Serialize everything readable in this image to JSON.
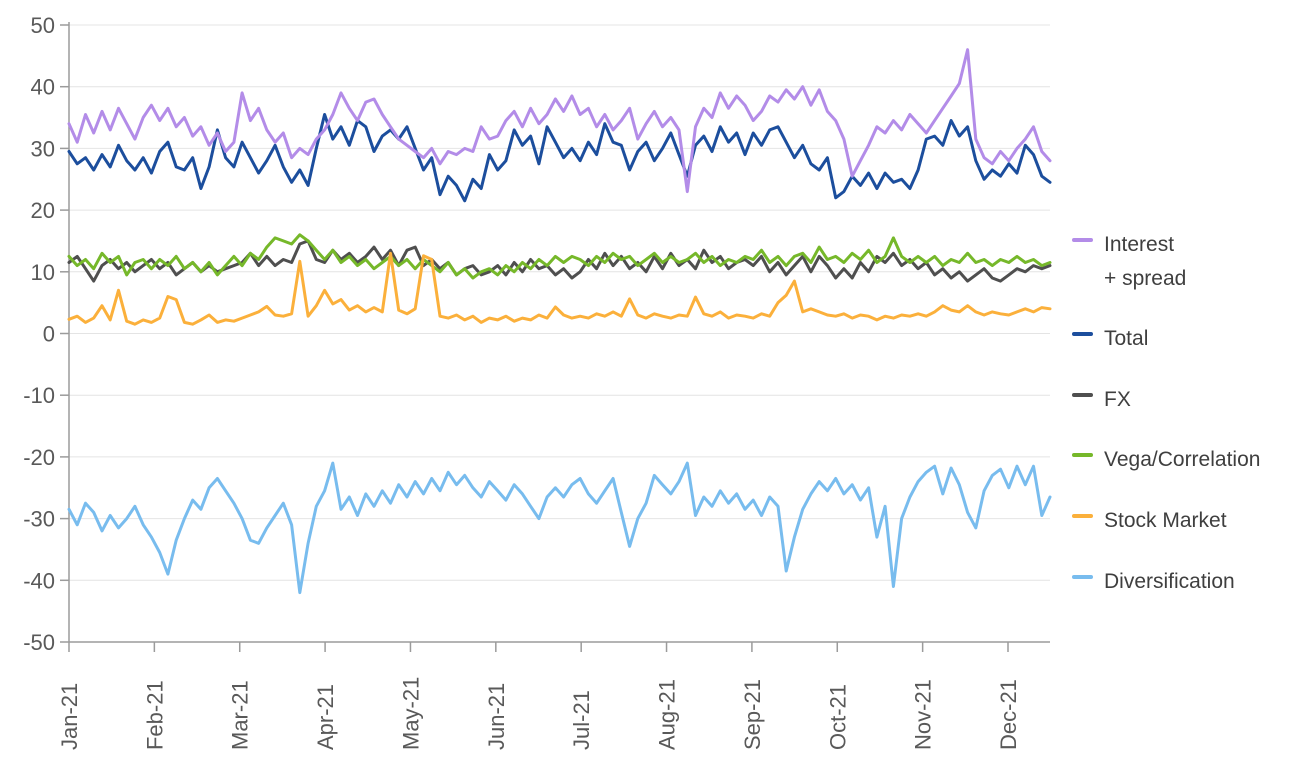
{
  "chart_data": {
    "type": "line",
    "title": "",
    "xlabel": "",
    "ylabel": "",
    "ylim": [
      -50,
      50
    ],
    "ytick_step": 10,
    "y_tick_labels": [
      "50",
      "40",
      "30",
      "20",
      "10",
      "0",
      "-10",
      "-20",
      "-30",
      "-40",
      "-50"
    ],
    "x_labels": [
      "Jan-21",
      "Feb-21",
      "Mar-21",
      "Apr-21",
      "May-21",
      "Jun-21",
      "Jul-21",
      "Aug-21",
      "Sep-21",
      "Oct-21",
      "Nov-21",
      "Dec-21"
    ],
    "grid": true,
    "legend_position": "right",
    "colors": {
      "grid": "#e4e4e4",
      "axis": "#9b9b9b",
      "tick_text": "#595959",
      "legend_text": "#3f3f3f",
      "background": "#ffffff"
    },
    "series": [
      {
        "name": "Interest + spread",
        "label": "Interest\n+ spread",
        "color": "#b38ce8",
        "values": [
          34,
          31,
          35.5,
          32.5,
          36,
          33,
          36.5,
          34,
          31.5,
          35,
          37,
          34.5,
          36.5,
          33.5,
          35,
          32,
          33.5,
          30.5,
          32.5,
          29.5,
          31,
          39,
          34.5,
          36.5,
          33,
          31,
          32.5,
          28.5,
          30,
          29,
          31.5,
          33,
          35.5,
          39,
          36.5,
          34.5,
          37.5,
          38,
          35.5,
          33.5,
          31.5,
          30.5,
          29.5,
          28.5,
          30,
          27.5,
          29.5,
          29,
          30,
          29.5,
          33.5,
          31.5,
          32,
          34.5,
          36,
          33.5,
          36.5,
          34,
          35.5,
          38,
          36,
          38.5,
          35.5,
          36.5,
          33.5,
          35.5,
          33,
          34.5,
          36.5,
          31.5,
          34,
          36,
          33.5,
          35,
          33,
          23,
          33.5,
          36.5,
          35,
          39,
          36.5,
          38.5,
          37,
          34.5,
          36,
          38.5,
          37.5,
          39.5,
          38,
          40,
          37,
          39.5,
          36,
          34.5,
          31.5,
          25.5,
          28,
          30.5,
          33.5,
          32.5,
          34.5,
          33,
          35.5,
          34,
          32.5,
          34.5,
          36.5,
          38.5,
          40.5,
          46,
          31.5,
          28.5,
          27.5,
          29.5,
          28,
          30,
          31.5,
          33.5,
          29.5,
          28
        ]
      },
      {
        "name": "Total",
        "label": "Total",
        "color": "#1c4e9d",
        "values": [
          29.5,
          27.5,
          28.5,
          26.5,
          29,
          27,
          30.5,
          28,
          26.5,
          28.5,
          26,
          29.5,
          31,
          27,
          26.5,
          28.5,
          23.5,
          27,
          33,
          28.5,
          27,
          31,
          28.5,
          26,
          28,
          30.5,
          27,
          24.5,
          26.5,
          24,
          30,
          35.5,
          31.5,
          33.5,
          30.5,
          34.5,
          33.5,
          29.5,
          32,
          33,
          31.5,
          33.5,
          30,
          26.5,
          28.5,
          22.5,
          25.5,
          24,
          21.5,
          25,
          23.5,
          29,
          26.5,
          28,
          33,
          30.5,
          32,
          27.5,
          33.5,
          31,
          28.5,
          30,
          28,
          31,
          29,
          34,
          31,
          30.5,
          26.5,
          29.5,
          31,
          28,
          30,
          32.5,
          29,
          25.5,
          30.5,
          32,
          29.5,
          33.5,
          31,
          32.5,
          29,
          32.5,
          30.5,
          33,
          33.5,
          31,
          28.5,
          30.5,
          27.5,
          26.5,
          28.5,
          22,
          23,
          25.5,
          24,
          26,
          23.5,
          26,
          24.5,
          25,
          23.5,
          26.5,
          31.5,
          32,
          30.5,
          34.5,
          32,
          33.5,
          28,
          25,
          26.5,
          25.5,
          27.5,
          26,
          30.5,
          29,
          25.5,
          24.5
        ]
      },
      {
        "name": "FX",
        "label": "FX",
        "color": "#4f4f4f",
        "values": [
          11.5,
          12.5,
          10.5,
          8.5,
          11,
          12,
          10.5,
          11.5,
          10,
          11,
          12,
          10.5,
          11.5,
          9.5,
          10.5,
          11.5,
          10,
          11,
          10,
          10.5,
          11,
          11.5,
          13,
          11,
          12.5,
          11,
          12,
          11.5,
          14.5,
          15,
          12,
          11.5,
          13.5,
          12,
          13,
          11.5,
          12.5,
          14,
          12,
          13.5,
          11,
          13.5,
          14,
          11,
          12,
          10.5,
          11.5,
          9.5,
          10.5,
          11,
          9.5,
          10,
          11,
          9.5,
          11.5,
          10,
          12,
          10.5,
          11,
          9.5,
          10.5,
          9,
          10,
          12,
          10.5,
          13,
          11,
          12.5,
          10.5,
          11.5,
          10,
          12.5,
          10.5,
          13,
          11,
          12,
          10.5,
          13.5,
          11.5,
          12.5,
          10.5,
          11.5,
          12,
          11,
          12.5,
          10,
          11.5,
          9.5,
          11,
          12.5,
          10,
          12.5,
          11,
          9,
          10.5,
          9,
          11.5,
          10,
          12.5,
          11.5,
          13,
          11,
          12,
          10.5,
          11.5,
          9.5,
          10.5,
          9,
          10,
          8.5,
          9.5,
          10.5,
          9,
          8.5,
          9.5,
          10.5,
          10,
          11,
          10.5,
          11
        ]
      },
      {
        "name": "Vega/Correlation",
        "label": "Vega/Correlation",
        "color": "#76b82a",
        "values": [
          12.5,
          11,
          12,
          10.5,
          13,
          11.5,
          12.5,
          9.5,
          11.5,
          12,
          10.5,
          12,
          11,
          12.5,
          10.5,
          11.5,
          10,
          11.5,
          9.5,
          11,
          12.5,
          11,
          13,
          12,
          14,
          15.5,
          15,
          14.5,
          16,
          15,
          13.5,
          12,
          13.5,
          11.5,
          12.5,
          11,
          12,
          10.5,
          11.5,
          12.5,
          11,
          12,
          10.5,
          12,
          11,
          10,
          11.5,
          9.5,
          10.5,
          9,
          10,
          10.5,
          9.5,
          11,
          10,
          11.5,
          10.5,
          12,
          11,
          12.5,
          11.5,
          12.5,
          12,
          11,
          12.5,
          11.5,
          13,
          12,
          12.5,
          11,
          12,
          13,
          11.5,
          12.5,
          11.5,
          12,
          13,
          11.5,
          12.5,
          11,
          12,
          11.5,
          12.5,
          12,
          13.5,
          11.5,
          12.5,
          11,
          12.5,
          13,
          11.5,
          14,
          12,
          12.5,
          11.5,
          13,
          12,
          13.5,
          11.5,
          12.5,
          15.5,
          12.5,
          11.5,
          12.5,
          11.5,
          12.5,
          11,
          12,
          11.5,
          13,
          11.5,
          12,
          11,
          12,
          11.5,
          12.5,
          11.5,
          12,
          11,
          11.5
        ]
      },
      {
        "name": "Stock Market",
        "label": "Stock Market",
        "color": "#fbb03b",
        "values": [
          2.3,
          2.8,
          1.8,
          2.5,
          4.5,
          2.2,
          7,
          2,
          1.5,
          2.2,
          1.8,
          2.5,
          6,
          5.5,
          1.8,
          1.5,
          2.2,
          3,
          1.8,
          2.2,
          2,
          2.5,
          3,
          3.5,
          4.4,
          3,
          2.8,
          3.2,
          11.7,
          2.8,
          4.5,
          7,
          4.8,
          5.5,
          3.8,
          4.5,
          3.5,
          4.2,
          3.5,
          13,
          3.8,
          3.2,
          4,
          12.6,
          12,
          2.8,
          2.5,
          3,
          2.2,
          2.8,
          1.8,
          2.5,
          2.2,
          2.8,
          2,
          2.5,
          2.2,
          3,
          2.5,
          4.3,
          3,
          2.5,
          2.8,
          2.5,
          3.2,
          2.8,
          3.5,
          2.8,
          5.6,
          3,
          2.5,
          3.2,
          2.8,
          2.5,
          3,
          2.8,
          5.9,
          3.2,
          2.8,
          3.5,
          2.5,
          3,
          2.8,
          2.5,
          3.2,
          2.8,
          5,
          6.2,
          8.5,
          3.5,
          4,
          3.5,
          3,
          2.8,
          3.2,
          2.5,
          3,
          2.8,
          2.2,
          2.8,
          2.5,
          3,
          2.8,
          3.2,
          2.8,
          3.5,
          4.5,
          3.8,
          3.5,
          4.5,
          3.5,
          3,
          3.5,
          3.2,
          3,
          3.5,
          4,
          3.5,
          4.2,
          4
        ]
      },
      {
        "name": "Diversification",
        "label": "Diversification",
        "color": "#78bcee",
        "values": [
          -28.5,
          -31,
          -27.5,
          -29,
          -32,
          -29.5,
          -31.5,
          -30,
          -28,
          -31,
          -33,
          -35.5,
          -39,
          -33.5,
          -30,
          -27,
          -28.5,
          -25,
          -23.5,
          -25.5,
          -27.5,
          -30,
          -33.5,
          -34,
          -31.5,
          -29.5,
          -27.5,
          -31,
          -42,
          -34,
          -28,
          -25.5,
          -21,
          -28.5,
          -26.5,
          -29.5,
          -26,
          -28,
          -25.5,
          -27.5,
          -24.5,
          -26.5,
          -24,
          -26,
          -23.5,
          -25.5,
          -22.5,
          -24.5,
          -23,
          -25,
          -26.5,
          -24,
          -25.5,
          -27,
          -24.5,
          -26,
          -28,
          -30,
          -26.5,
          -25,
          -26.5,
          -24.5,
          -23.5,
          -26,
          -27.5,
          -25.5,
          -23.5,
          -29,
          -34.5,
          -30,
          -27.5,
          -23,
          -24.5,
          -26,
          -24,
          -21,
          -29.5,
          -26.5,
          -28,
          -25.5,
          -27.5,
          -26,
          -28.5,
          -27,
          -29.5,
          -26.5,
          -28,
          -38.5,
          -33,
          -28.5,
          -26,
          -24,
          -25.5,
          -23.5,
          -26,
          -24.5,
          -27,
          -25,
          -33,
          -28,
          -41,
          -30,
          -26.5,
          -24,
          -22.5,
          -21.5,
          -26,
          -21.8,
          -24.5,
          -29,
          -31.5,
          -25.5,
          -23,
          -22,
          -25,
          -21.5,
          -24.5,
          -21.5,
          -29.5,
          -26.5
        ]
      }
    ],
    "draw_order": [
      2,
      3,
      4,
      5,
      1,
      0
    ]
  },
  "legend": {
    "title": ""
  }
}
